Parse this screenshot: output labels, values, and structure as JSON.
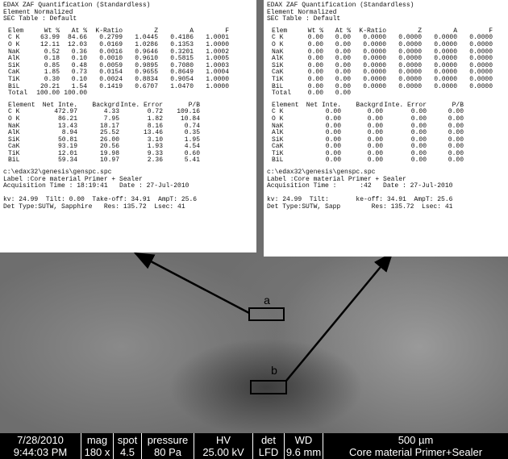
{
  "panels": [
    {
      "header": [
        "EDAX ZAF Quantification (Standardless)",
        "Element Normalized",
        "SEC Table : Default"
      ],
      "quant": {
        "columns": [
          "Elem",
          "Wt %",
          "At %",
          "K-Ratio",
          "Z",
          "A",
          "F"
        ],
        "rows": [
          [
            "C K",
            "63.99",
            "84.66",
            "0.2799",
            "1.0445",
            "0.4186",
            "1.0001"
          ],
          [
            "O K",
            "12.11",
            "12.03",
            "0.0169",
            "1.0286",
            "0.1353",
            "1.0000"
          ],
          [
            "NaK",
            "0.52",
            "0.36",
            "0.0016",
            "0.9646",
            "0.3201",
            "1.0002"
          ],
          [
            "AlK",
            "0.18",
            "0.10",
            "0.0010",
            "0.9610",
            "0.5815",
            "1.0005"
          ],
          [
            "SiK",
            "0.85",
            "0.48",
            "0.0059",
            "0.9895",
            "0.7080",
            "1.0003"
          ],
          [
            "CaK",
            "1.85",
            "0.73",
            "0.0154",
            "0.9655",
            "0.8649",
            "1.0004"
          ],
          [
            "TiK",
            "0.30",
            "0.10",
            "0.0024",
            "0.8834",
            "0.9054",
            "1.0000"
          ],
          [
            "BiL",
            "20.21",
            "1.54",
            "0.1419",
            "0.6707",
            "1.0470",
            "1.0000"
          ],
          [
            "Total",
            "100.00",
            "100.00"
          ]
        ]
      },
      "inte": {
        "columns": [
          "Element",
          "Net Inte.",
          "Backgrd",
          "Inte. Error",
          "P/B"
        ],
        "rows": [
          [
            "C K",
            "472.97",
            "4.33",
            "0.72",
            "109.16"
          ],
          [
            "O K",
            "86.21",
            "7.95",
            "1.82",
            "10.84"
          ],
          [
            "NaK",
            "13.43",
            "18.17",
            "8.16",
            "0.74"
          ],
          [
            "AlK",
            "8.94",
            "25.52",
            "13.46",
            "0.35"
          ],
          [
            "SiK",
            "50.81",
            "26.00",
            "3.10",
            "1.95"
          ],
          [
            "CaK",
            "93.19",
            "20.56",
            "1.93",
            "4.54"
          ],
          [
            "TiK",
            "12.01",
            "19.98",
            "9.33",
            "0.60"
          ],
          [
            "BiL",
            "59.34",
            "10.97",
            "2.36",
            "5.41"
          ]
        ]
      },
      "footer": [
        "c:\\edax32\\genesis\\genspc.spc",
        "Label :Core material Primer + Sealer",
        "Acquisition Time : 18:19:41   Date : 27-Jul-2010",
        "",
        "kv: 24.99  Tilt: 0.00  Take-off: 34.91  AmpT: 25.6",
        "Det Type:SUTW, Sapphire   Res: 135.72  Lsec: 41"
      ]
    },
    {
      "header": [
        "EDAX ZAF Quantification (Standardless)",
        "Element Normalized",
        "SEC Table : Default"
      ],
      "quant": {
        "columns": [
          "Elem",
          "Wt %",
          "At %",
          "K-Ratio",
          "Z",
          "A",
          "F"
        ],
        "rows": [
          [
            "C K",
            "0.00",
            "0.00",
            "0.0000",
            "0.0000",
            "0.0000",
            "0.0000"
          ],
          [
            "O K",
            "0.00",
            "0.00",
            "0.0000",
            "0.0000",
            "0.0000",
            "0.0000"
          ],
          [
            "NaK",
            "0.00",
            "0.00",
            "0.0000",
            "0.0000",
            "0.0000",
            "0.0000"
          ],
          [
            "AlK",
            "0.00",
            "0.00",
            "0.0000",
            "0.0000",
            "0.0000",
            "0.0000"
          ],
          [
            "SiK",
            "0.00",
            "0.00",
            "0.0000",
            "0.0000",
            "0.0000",
            "0.0000"
          ],
          [
            "CaK",
            "0.00",
            "0.00",
            "0.0000",
            "0.0000",
            "0.0000",
            "0.0000"
          ],
          [
            "TiK",
            "0.00",
            "0.00",
            "0.0000",
            "0.0000",
            "0.0000",
            "0.0000"
          ],
          [
            "BiL",
            "0.00",
            "0.00",
            "0.0000",
            "0.0000",
            "0.0000",
            "0.0000"
          ],
          [
            "Total",
            "0.00",
            "0.00"
          ]
        ]
      },
      "inte": {
        "columns": [
          "Element",
          "Net Inte.",
          "Backgrd",
          "Inte. Error",
          "P/B"
        ],
        "rows": [
          [
            "C K",
            "0.00",
            "0.00",
            "0.00",
            "0.00"
          ],
          [
            "O K",
            "0.00",
            "0.00",
            "0.00",
            "0.00"
          ],
          [
            "NaK",
            "0.00",
            "0.00",
            "0.00",
            "0.00"
          ],
          [
            "AlK",
            "0.00",
            "0.00",
            "0.00",
            "0.00"
          ],
          [
            "SiK",
            "0.00",
            "0.00",
            "0.00",
            "0.00"
          ],
          [
            "CaK",
            "0.00",
            "0.00",
            "0.00",
            "0.00"
          ],
          [
            "TiK",
            "0.00",
            "0.00",
            "0.00",
            "0.00"
          ],
          [
            "BiL",
            "0.00",
            "0.00",
            "0.00",
            "0.00"
          ]
        ]
      },
      "footer": [
        "c:\\edax32\\genesis\\genspc.spc",
        "Label :Core material Primer + Sealer",
        "Acquisition Time :      :42   Date : 27-Jul-2010",
        "",
        "kv: 24.99  Tilt:       ke-off: 34.91  AmpT: 25.6",
        "Det Type:SUTW, Sapp        Res: 135.72  Lsec: 41"
      ]
    }
  ],
  "markers": [
    "a",
    "b"
  ],
  "status_bar": [
    [
      "7/28/2010",
      "9:44:03 PM"
    ],
    [
      "mag",
      "180 x"
    ],
    [
      "spot",
      "4.5"
    ],
    [
      "pressure",
      "80 Pa"
    ],
    [
      "HV",
      "25.00 kV"
    ],
    [
      "det",
      "LFD"
    ],
    [
      "WD",
      "9.6 mm"
    ],
    [
      "500 µm",
      "Core material Primer+Sealer"
    ]
  ]
}
